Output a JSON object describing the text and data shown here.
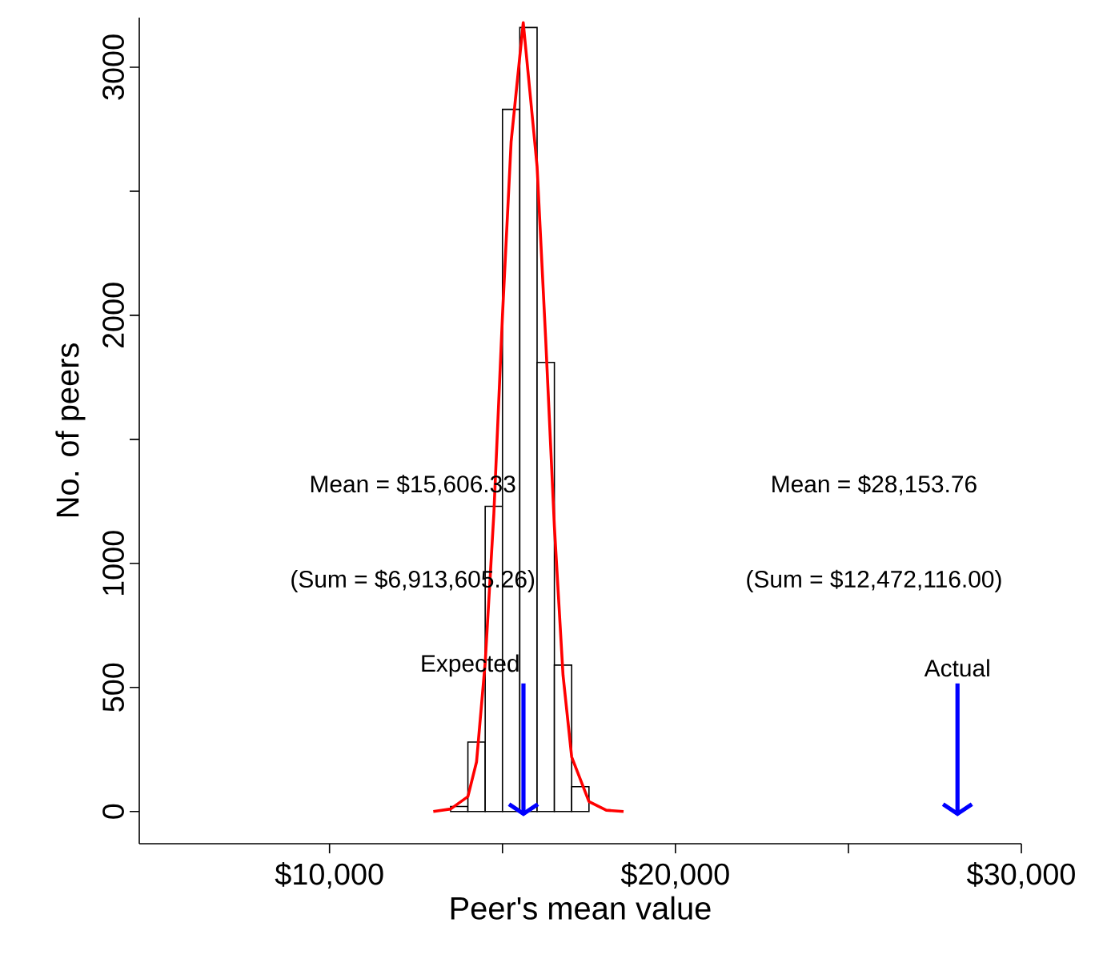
{
  "chart_data": {
    "type": "histogram",
    "xlabel": "Peer's mean value",
    "ylabel": "No. of peers",
    "bins": [
      13500,
      14000,
      14500,
      15000,
      15500,
      16000,
      16500,
      17000,
      17500
    ],
    "values": [
      20,
      280,
      1230,
      2830,
      3160,
      1810,
      590,
      100
    ],
    "color": "#ffffff",
    "series": [
      {
        "type": "line",
        "color": "#ff0000",
        "x": [
          13000,
          13500,
          14000,
          14250,
          14500,
          14750,
          15000,
          15250,
          15600,
          16000,
          16250,
          16500,
          16750,
          17000,
          17500,
          18000,
          18500
        ],
        "values": [
          0,
          10,
          60,
          200,
          600,
          1200,
          2000,
          2700,
          3180,
          2600,
          1900,
          1150,
          550,
          220,
          40,
          5,
          0
        ]
      }
    ],
    "xlim": [
      4500,
      30000
    ],
    "ylim": [
      -130,
      3200
    ],
    "xticks": [
      {
        "value": 10000,
        "label": "$10,000"
      },
      {
        "value": 15000,
        "label": null
      },
      {
        "value": 20000,
        "label": "$20,000"
      },
      {
        "value": 25000,
        "label": null
      },
      {
        "value": 30000,
        "label": "$30,000"
      }
    ],
    "yticks": [
      0,
      500,
      1000,
      {
        "value": 1500,
        "label": null
      },
      2000,
      {
        "value": 2500,
        "label": null
      },
      3000
    ],
    "annotations": [
      "Mean = $15,606.33",
      "(Sum = $6,913,605.26)",
      "Mean = $28,153.76",
      "(Sum = $12,472,116.00)",
      {
        "text": "Expected",
        "x": 15606.33,
        "y": 0
      },
      {
        "text": "Actual",
        "x": 28153.76,
        "y": 0
      }
    ]
  }
}
